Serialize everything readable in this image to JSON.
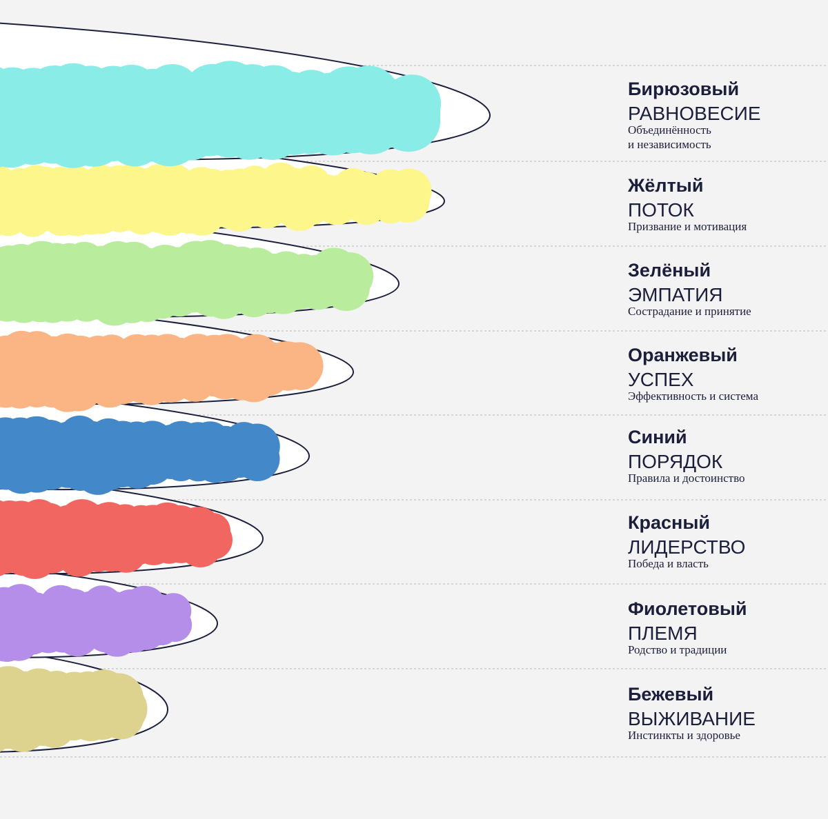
{
  "levels": [
    {
      "name": "Бирюзовый",
      "value": "РАВНОВЕСИЕ",
      "description": [
        "Объединённость",
        "и независимость"
      ]
    },
    {
      "name": "Жёлтый",
      "value": "ПОТОК",
      "description": [
        "Призвание и мотивация"
      ]
    },
    {
      "name": "Зелёный",
      "value": "ЭМПАТИЯ",
      "description": [
        "Сострадание и принятие"
      ]
    },
    {
      "name": "Оранжевый",
      "value": "УСПЕХ",
      "description": [
        "Эффективность и система"
      ]
    },
    {
      "name": "Синий",
      "value": "ПОРЯДОК",
      "description": [
        "Правила и достоинство"
      ]
    },
    {
      "name": "Красный",
      "value": "ЛИДЕРСТВО",
      "description": [
        "Победа и власть"
      ]
    },
    {
      "name": "Фиолетовый",
      "value": "ПЛЕМЯ",
      "description": [
        "Родство и традиции"
      ]
    },
    {
      "name": "Бежевый",
      "value": "ВЫЖИВАНИЕ",
      "description": [
        "Инстинкты и здоровье"
      ]
    }
  ]
}
